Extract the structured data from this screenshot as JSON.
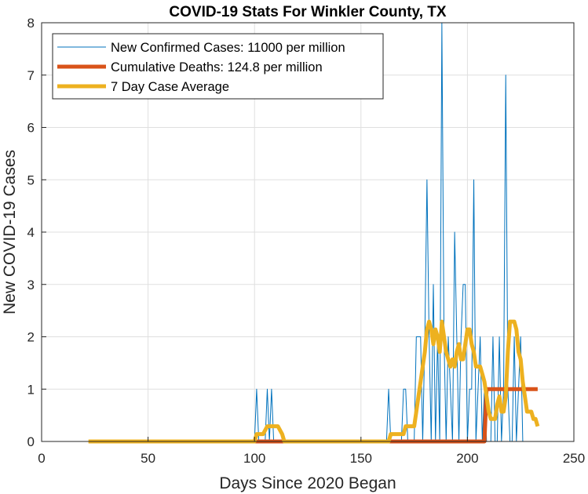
{
  "chart_data": {
    "type": "line",
    "title": "COVID-19 Stats For Winkler County, TX",
    "xlabel": "Days Since 2020 Began",
    "ylabel": "New COVID-19 Cases",
    "xlim": [
      0,
      250
    ],
    "ylim": [
      0,
      8
    ],
    "xticks": [
      0,
      50,
      100,
      150,
      200,
      250
    ],
    "yticks": [
      0,
      1,
      2,
      3,
      4,
      5,
      6,
      7,
      8
    ],
    "grid": true,
    "legend_position": "top-left",
    "series": [
      {
        "name": "New Confirmed Cases: 11000 per million",
        "color": "#0072BD",
        "width": 1,
        "x": [
          22,
          100,
          101,
          102,
          103,
          104,
          105,
          106,
          107,
          108,
          109,
          110,
          111,
          162,
          163,
          164,
          165,
          166,
          167,
          168,
          169,
          170,
          171,
          172,
          173,
          174,
          175,
          176,
          177,
          178,
          179,
          180,
          181,
          182,
          183,
          184,
          185,
          186,
          187,
          188,
          189,
          190,
          191,
          192,
          193,
          194,
          195,
          196,
          197,
          198,
          199,
          200,
          201,
          202,
          203,
          204,
          205,
          206,
          207,
          208,
          209,
          210,
          211,
          212,
          213,
          214,
          215,
          216,
          217,
          218,
          219,
          220,
          221,
          222,
          223,
          224,
          225,
          226,
          227,
          228,
          229,
          230,
          231,
          232,
          233
        ],
        "y": [
          0,
          0,
          1,
          0,
          0,
          0,
          0,
          1,
          0,
          1,
          0,
          0,
          0,
          0,
          1,
          0,
          0,
          0,
          0,
          0,
          0,
          1,
          1,
          0,
          0,
          0,
          0,
          2,
          2,
          2,
          0,
          2,
          5,
          2,
          0,
          3,
          0,
          2,
          0,
          8,
          2,
          0,
          2,
          1,
          0,
          4,
          2,
          0,
          2,
          3,
          3,
          0,
          1,
          1,
          5,
          0,
          1,
          2,
          0,
          1,
          0,
          0,
          0,
          2,
          0,
          0,
          2,
          0,
          1,
          7,
          1,
          0,
          0,
          2,
          0,
          1,
          2,
          0,
          0,
          0,
          0,
          0,
          0,
          0,
          0
        ]
      },
      {
        "name": "Cumulative Deaths: 124.8 per million",
        "color": "#D95319",
        "width": 5,
        "x": [
          100,
          101,
          112,
          113,
          162,
          206,
          207,
          208,
          209,
          233
        ],
        "y": [
          0,
          0,
          0,
          0,
          0,
          0,
          0,
          0,
          1,
          1
        ]
      },
      {
        "name": "7 Day Case Average",
        "color": "#EDB120",
        "width": 5,
        "x": [
          22,
          100,
          101,
          102,
          104,
          106,
          108,
          111,
          113,
          114,
          163,
          164,
          165,
          170,
          171,
          175,
          176,
          177,
          178,
          179,
          180,
          181,
          182,
          183,
          184,
          185,
          186,
          187,
          188,
          189,
          190,
          191,
          192,
          193,
          194,
          195,
          196,
          197,
          198,
          199,
          200,
          201,
          202,
          203,
          204,
          205,
          206,
          207,
          208,
          209,
          210,
          211,
          212,
          213,
          214,
          215,
          216,
          217,
          218,
          219,
          220,
          221,
          222,
          223,
          224,
          225,
          226,
          227,
          228,
          229,
          230,
          231,
          232,
          233
        ],
        "y": [
          0,
          0,
          0.14,
          0.14,
          0.14,
          0.29,
          0.29,
          0.29,
          0.14,
          0,
          0,
          0.14,
          0.14,
          0.14,
          0.29,
          0.29,
          0.57,
          0.86,
          1.14,
          1.43,
          1.71,
          2.14,
          2.29,
          2.14,
          1.86,
          2.14,
          2,
          1.71,
          2.29,
          2,
          1.71,
          1.57,
          1.43,
          1.57,
          1.43,
          1.71,
          1.86,
          1.57,
          1.57,
          1.86,
          2.14,
          2.14,
          1.86,
          1.71,
          1.43,
          1.43,
          1.43,
          1.29,
          1.14,
          0.86,
          0.57,
          0.43,
          0.43,
          0.43,
          0.71,
          0.86,
          0.57,
          0.57,
          0.86,
          1.71,
          2.29,
          2.29,
          2.29,
          2.14,
          1.71,
          1.57,
          1.14,
          0.86,
          0.57,
          0.57,
          0.57,
          0.43,
          0.43,
          0.29
        ]
      }
    ]
  }
}
